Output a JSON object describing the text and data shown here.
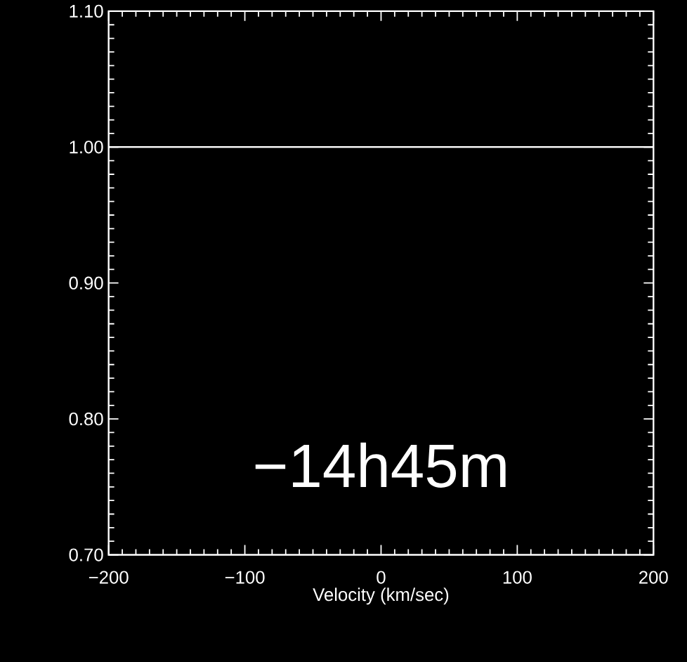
{
  "chart_data": {
    "type": "line",
    "xlabel": "Velocity (km/sec)",
    "series": [
      {
        "color": "#ffffff",
        "x": [
          -200,
          200
        ],
        "values": [
          1.0,
          1.0
        ]
      }
    ],
    "xlim": [
      -200,
      200
    ],
    "ylim": [
      0.7,
      1.1
    ],
    "xticks": [
      {
        "value": -200,
        "label": "−200"
      },
      {
        "value": -100,
        "label": "−100"
      },
      0,
      100,
      200
    ],
    "yticks": [
      {
        "value": 0.7,
        "label": "0.70"
      },
      {
        "value": 0.8,
        "label": "0.80"
      },
      {
        "value": 0.9,
        "label": "0.90"
      },
      {
        "value": 1.0,
        "label": "1.00"
      },
      {
        "value": 1.1,
        "label": "1.10"
      }
    ],
    "annotations": [
      "−14h45m"
    ]
  }
}
